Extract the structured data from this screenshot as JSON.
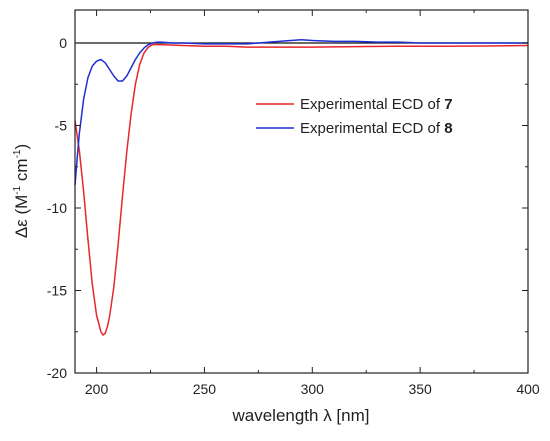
{
  "chart_data": {
    "type": "line",
    "title": "",
    "xlabel": "wavelength λ [nm]",
    "ylabel_main": "Δε (M",
    "ylabel_sup1": "-1",
    "ylabel_mid": " cm",
    "ylabel_sup2": "-1",
    "ylabel_end": ")",
    "xlim": [
      190,
      400
    ],
    "ylim": [
      -20,
      2
    ],
    "xticks": [
      "200",
      "250",
      "300",
      "350",
      "400"
    ],
    "yticks": [
      "0",
      "-5",
      "-10",
      "-15",
      "-20"
    ],
    "zero_line": true,
    "legend_position": "upper-right",
    "series": [
      {
        "name": "Experimental ECD of ",
        "name_bold": "7",
        "color": "#e8262b",
        "x": [
          190,
          192,
          194,
          196,
          198,
          200,
          202,
          203,
          204,
          205,
          206,
          208,
          210,
          212,
          214,
          216,
          218,
          220,
          222,
          224,
          226,
          228,
          230,
          240,
          250,
          260,
          270,
          280,
          290,
          300,
          320,
          340,
          360,
          380,
          400
        ],
        "y": [
          -4.7,
          -6.5,
          -9.0,
          -11.9,
          -14.6,
          -16.5,
          -17.5,
          -17.7,
          -17.6,
          -17.2,
          -16.6,
          -14.8,
          -12.2,
          -9.3,
          -6.6,
          -4.3,
          -2.5,
          -1.3,
          -0.6,
          -0.25,
          -0.1,
          -0.1,
          -0.1,
          -0.15,
          -0.2,
          -0.2,
          -0.25,
          -0.25,
          -0.25,
          -0.25,
          -0.22,
          -0.2,
          -0.2,
          -0.18,
          -0.15
        ]
      },
      {
        "name": "Experimental ECD of ",
        "name_bold": "8",
        "color": "#1f2fd0",
        "x": [
          190,
          191,
          192,
          194,
          196,
          198,
          200,
          202,
          204,
          206,
          208,
          210,
          212,
          214,
          216,
          218,
          220,
          222,
          224,
          226,
          228,
          230,
          235,
          240,
          250,
          260,
          270,
          280,
          290,
          295,
          300,
          310,
          320,
          330,
          340,
          350,
          360,
          380,
          400
        ],
        "y": [
          -8.6,
          -7.0,
          -5.5,
          -3.4,
          -2.1,
          -1.4,
          -1.1,
          -1.0,
          -1.2,
          -1.6,
          -2.0,
          -2.3,
          -2.3,
          -2.0,
          -1.5,
          -1.0,
          -0.6,
          -0.3,
          -0.1,
          0.0,
          0.05,
          0.05,
          0.0,
          0.0,
          -0.05,
          -0.05,
          -0.05,
          0.05,
          0.15,
          0.2,
          0.15,
          0.1,
          0.1,
          0.05,
          0.05,
          0.0,
          0.0,
          0.0,
          0.0
        ]
      }
    ]
  }
}
